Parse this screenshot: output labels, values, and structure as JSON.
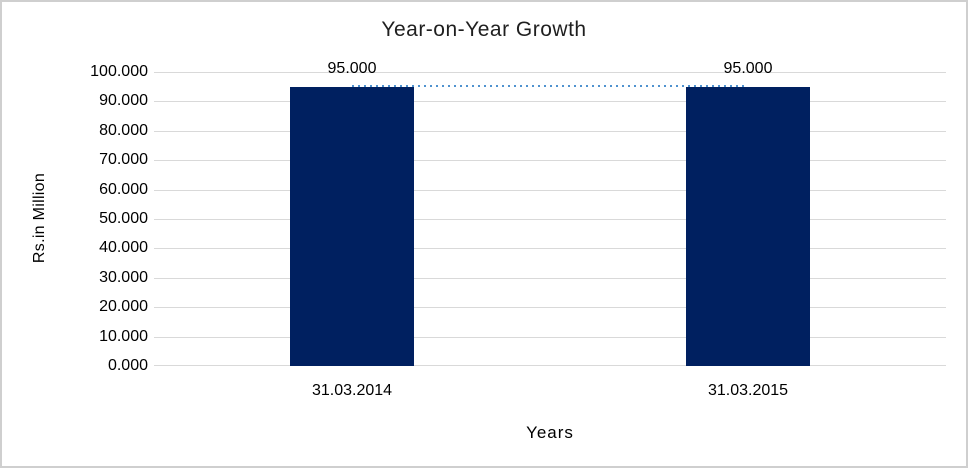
{
  "chart_data": {
    "type": "bar",
    "title": "Year-on-Year Growth",
    "xlabel": "Years",
    "ylabel": "Rs.in Million",
    "categories": [
      "31.03.2014",
      "31.03.2015"
    ],
    "values": [
      95,
      95
    ],
    "data_labels": [
      "95.000",
      "95.000"
    ],
    "ylim": [
      0,
      100
    ],
    "ytick_step": 10,
    "ytick_decimals": 3,
    "ytick_labels": [
      "0.000",
      "10.000",
      "20.000",
      "30.000",
      "40.000",
      "50.000",
      "60.000",
      "70.000",
      "80.000",
      "90.000",
      "100.000"
    ],
    "grid": "horizontal",
    "legend": "none",
    "trendline": {
      "type": "dotted-connector",
      "y": 95,
      "color": "#4f92cf"
    },
    "colors": {
      "bar": "#002060",
      "gridline": "#d9d9d9",
      "axis_line": "#d9d9d9",
      "chart_border": "#cfcfcf",
      "text": "#000000"
    }
  }
}
